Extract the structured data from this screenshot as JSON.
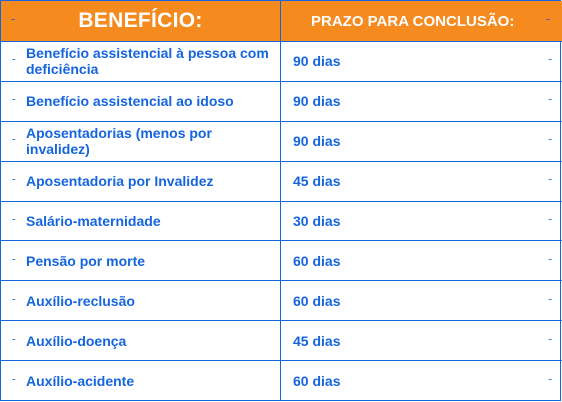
{
  "header": {
    "beneficio": "BENEFÍCIO:",
    "prazo": "PRAZO PARA CONCLUSÃO:",
    "marker": "-"
  },
  "rows": [
    {
      "beneficio": "Benefício assistencial à pessoa com deficiência",
      "prazo": "90 dias"
    },
    {
      "beneficio": "Benefício assistencial ao idoso",
      "prazo": "90 dias"
    },
    {
      "beneficio": "Aposentadorias (menos por invalidez)",
      "prazo": "90 dias"
    },
    {
      "beneficio": "Aposentadoria por Invalidez",
      "prazo": "45 dias"
    },
    {
      "beneficio": "Salário-maternidade",
      "prazo": "30 dias"
    },
    {
      "beneficio": "Pensão por morte",
      "prazo": "60 dias"
    },
    {
      "beneficio": "Auxílio-reclusão",
      "prazo": "60 dias"
    },
    {
      "beneficio": "Auxílio-doença",
      "prazo": "45 dias"
    },
    {
      "beneficio": "Auxílio-acidente",
      "prazo": "60 dias"
    }
  ],
  "colors": {
    "header_bg": "#f58a1f",
    "border": "#1565e0",
    "text": "#1565e0"
  }
}
